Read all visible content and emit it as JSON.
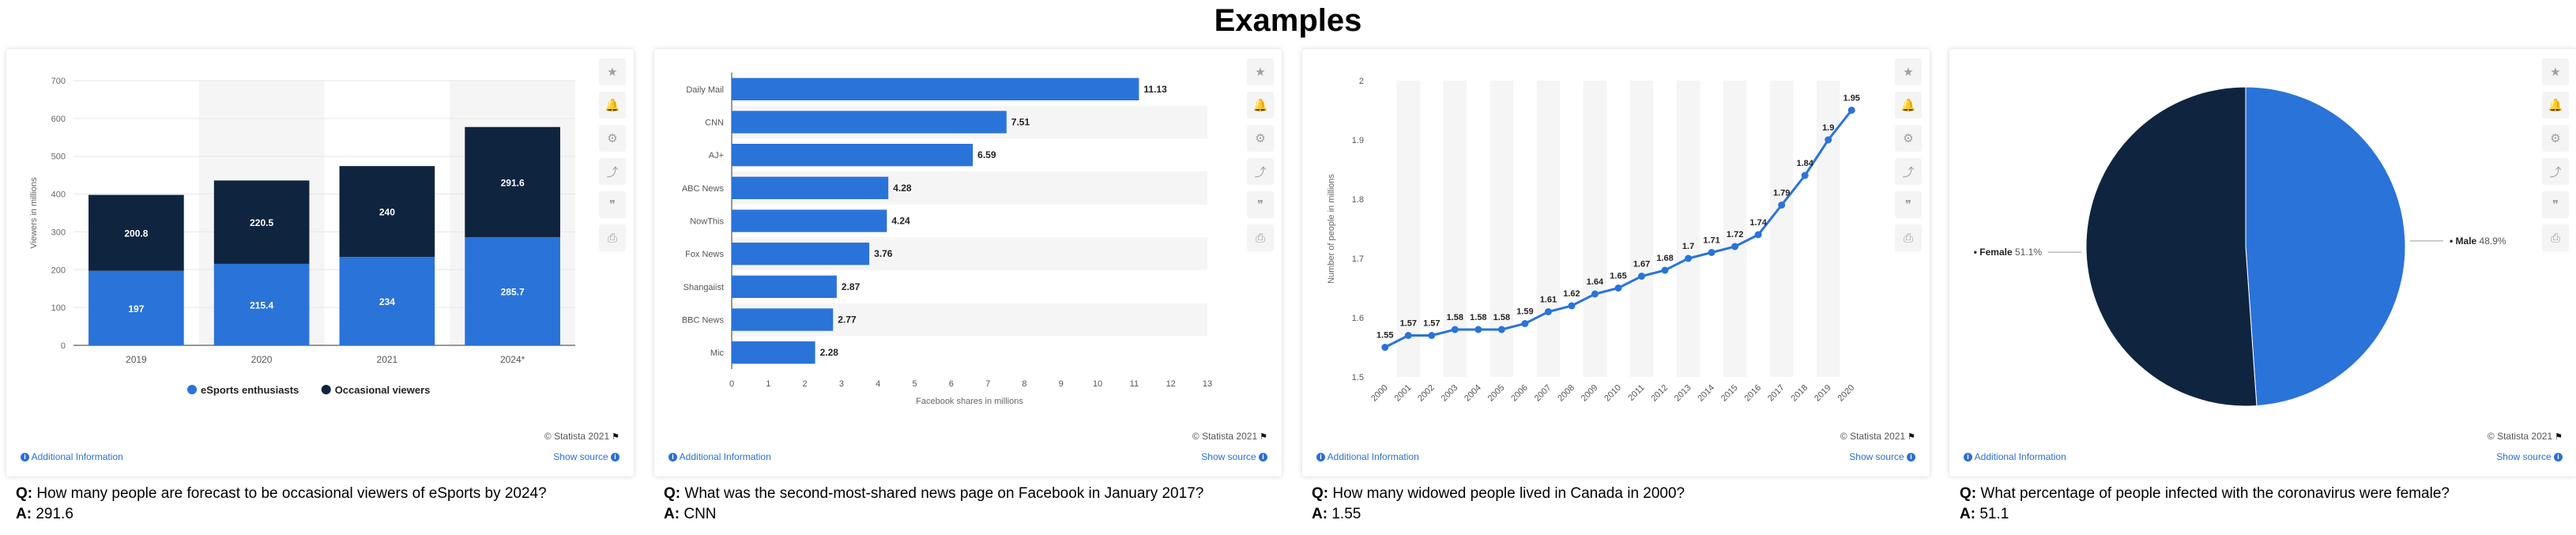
{
  "page": {
    "title": "Examples"
  },
  "common": {
    "copyright": "© Statista 2021",
    "additional_info": "Additional Information",
    "show_source": "Show source",
    "q_prefix": "Q:",
    "a_prefix": "A:",
    "sidebar_icons": [
      "star-icon",
      "bell-icon",
      "gear-icon",
      "share-icon",
      "quote-icon",
      "print-icon"
    ]
  },
  "colors": {
    "blue": "#2a73d9",
    "navy": "#0f253f",
    "accent_link": "#2b6fd0"
  },
  "panels": [
    {
      "question": "How many people are forecast to be occasional viewers of eSports by 2024?",
      "answer": "291.6",
      "chart_data": {
        "type": "bar",
        "stacked": true,
        "categories": [
          "2019",
          "2020",
          "2021",
          "2024*"
        ],
        "series": [
          {
            "name": "eSports enthusiasts",
            "values": [
              197,
              215.4,
              234,
              285.7
            ],
            "color": "#2a73d9"
          },
          {
            "name": "Occasional viewers",
            "values": [
              200.8,
              220.5,
              240,
              291.6
            ],
            "color": "#0f253f"
          }
        ],
        "ylabel": "Viewers in millions",
        "ylim": [
          0,
          700
        ],
        "yticks": [
          0,
          100,
          200,
          300,
          400,
          500,
          600,
          700
        ],
        "legend": "bottom"
      }
    },
    {
      "question": "What was the second-most-shared news page on Facebook in January 2017?",
      "answer": "CNN",
      "chart_data": {
        "type": "bar",
        "orientation": "horizontal",
        "categories": [
          "Daily Mail",
          "CNN",
          "AJ+",
          "ABC News",
          "NowThis",
          "Fox News",
          "Shangaiist",
          "BBC News",
          "Mic"
        ],
        "values": [
          11.13,
          7.51,
          6.59,
          4.28,
          4.24,
          3.76,
          2.87,
          2.77,
          2.28
        ],
        "xlabel": "Facebook shares in millions",
        "xlim": [
          0,
          13
        ],
        "xticks": [
          0,
          1,
          2,
          3,
          4,
          5,
          6,
          7,
          8,
          9,
          10,
          11,
          12,
          13
        ]
      }
    },
    {
      "question": "How many widowed people lived in Canada in 2000?",
      "answer": "1.55",
      "chart_data": {
        "type": "line",
        "x": [
          "2000",
          "2001",
          "2002",
          "2003",
          "2004",
          "2005",
          "2006",
          "2007",
          "2008",
          "2009",
          "2010",
          "2011",
          "2012",
          "2013",
          "2014",
          "2015",
          "2016",
          "2017",
          "2018",
          "2019",
          "2020"
        ],
        "values": [
          1.55,
          1.57,
          1.57,
          1.58,
          1.58,
          1.58,
          1.59,
          1.61,
          1.62,
          1.64,
          1.65,
          1.67,
          1.68,
          1.7,
          1.71,
          1.72,
          1.74,
          1.79,
          1.84,
          1.9,
          1.95
        ],
        "ylabel": "Number of people in millions",
        "ylim": [
          1.5,
          2
        ],
        "yticks": [
          "1.5",
          "1.6",
          "1.7",
          "1.8",
          "1.9",
          "2"
        ]
      }
    },
    {
      "question": "What percentage of people infected with the coronavirus were female?",
      "answer": "51.1",
      "chart_data": {
        "type": "pie",
        "slices": [
          {
            "name": "Male",
            "value": 48.9,
            "label": "48.9%",
            "color": "#2a73d9"
          },
          {
            "name": "Female",
            "value": 51.1,
            "label": "51.1%",
            "color": "#0f253f"
          }
        ]
      }
    }
  ]
}
